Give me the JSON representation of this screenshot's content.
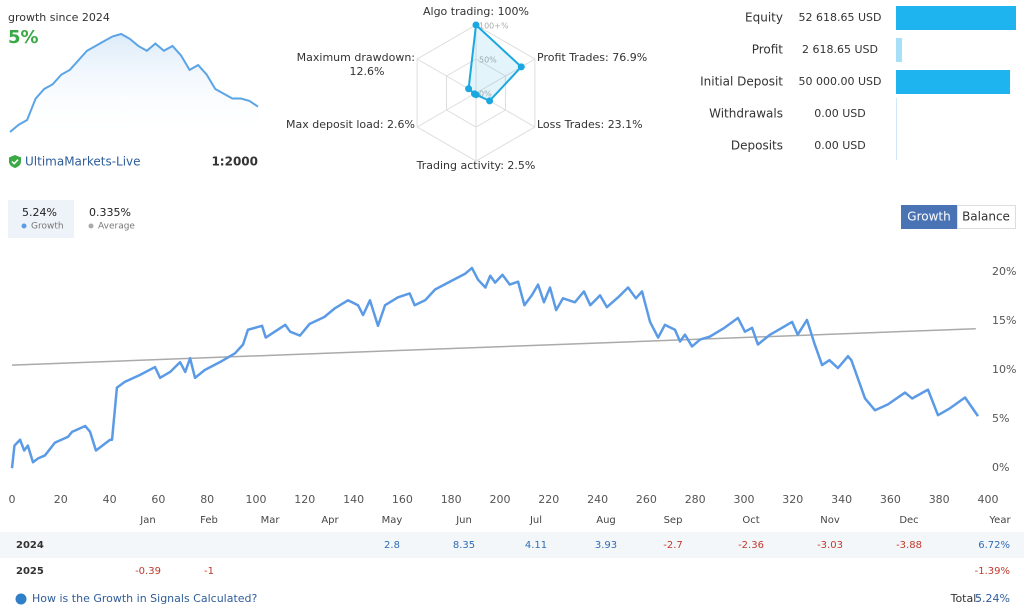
{
  "header": {
    "growth_label": "growth since 2024",
    "growth_value": "5%",
    "broker": "UltimaMarkets-Live",
    "leverage": "1:2000"
  },
  "tabs": [
    "Growth",
    "Balance"
  ],
  "chart_data": [
    {
      "type": "area",
      "color": "#5ba4e6",
      "values": [
        0,
        1.5,
        2.5,
        7,
        9,
        10,
        12,
        13,
        15,
        17,
        18,
        19,
        20,
        20.5,
        19.5,
        18,
        17,
        18.5,
        17,
        18,
        16,
        13,
        14,
        12,
        9,
        8,
        7,
        7,
        6.5,
        5.3
      ]
    },
    {
      "type": "radar",
      "color": "#1ba8e0",
      "categories": [
        "Algo trading:",
        "Profit Trades:",
        "Loss Trades:",
        "Trading activity:",
        "Max deposit load:",
        "Maximum drawdown:"
      ],
      "values": [
        100,
        76.9,
        23.1,
        2.5,
        2.6,
        12.6
      ],
      "value_labels": [
        "100%",
        "76.9%",
        "23.1%",
        "2.5%",
        "2.6%",
        "12.6%"
      ],
      "rlim": [
        0,
        100
      ],
      "rticks": [
        {
          "value": 100,
          "label": "100+%"
        },
        {
          "value": 50,
          "label": "50%"
        },
        {
          "value": 0,
          "label": "0%"
        }
      ]
    },
    {
      "type": "barh",
      "categories": [
        "Equity",
        "Profit",
        "Initial Deposit",
        "Withdrawals",
        "Deposits"
      ],
      "values": [
        52618.65,
        2618.65,
        50000,
        0,
        0
      ],
      "value_labels": [
        "52 618.65 USD",
        "2 618.65 USD",
        "50 000.00 USD",
        "0.00 USD",
        "0.00 USD"
      ],
      "colors": [
        "#1eb4f0",
        "#a6dff7",
        "#1eb4f0",
        "#1eb4f0",
        "#1eb4f0"
      ]
    },
    {
      "type": "line",
      "xlim": [
        0,
        400
      ],
      "xticks": [
        0,
        20,
        40,
        60,
        80,
        100,
        120,
        140,
        160,
        180,
        200,
        220,
        240,
        260,
        280,
        300,
        320,
        340,
        360,
        380,
        400
      ],
      "ylim": [
        -1,
        21
      ],
      "yticks": [
        {
          "value": 0,
          "label": "0%"
        },
        {
          "value": 5,
          "label": "5%"
        },
        {
          "value": 10,
          "label": "10%"
        },
        {
          "value": 15,
          "label": "15%"
        },
        {
          "value": 20,
          "label": "20%"
        }
      ],
      "grid": false,
      "series": [
        {
          "name": "Growth",
          "summary": "5.24%",
          "color": "#5b9be6",
          "x": [
            0,
            1,
            3.3,
            5,
            6.5,
            8.6,
            10.7,
            13.5,
            17.6,
            23,
            24.6,
            30,
            32,
            34.4,
            40.2,
            41,
            43,
            46.3,
            52.5,
            58.6,
            60.7,
            64.8,
            68.9,
            71,
            73,
            75,
            79,
            85.2,
            91.4,
            94.7,
            96.7,
            102.5,
            104,
            112,
            114,
            118,
            122,
            128,
            132.4,
            137.7,
            141.8,
            143.9,
            146.7,
            150,
            152.9,
            158.2,
            163,
            165,
            169.3,
            173.4,
            179.5,
            185.7,
            188.5,
            191,
            194,
            196,
            198,
            201,
            204,
            207.4,
            210,
            213,
            215.6,
            218,
            220.5,
            223,
            225.8,
            230.7,
            234.4,
            237,
            241,
            243.8,
            248.4,
            252.5,
            255.7,
            258.2,
            261.5,
            264.8,
            267.6,
            271.7,
            273.8,
            275.8,
            278.7,
            282,
            286,
            292,
            297.5,
            300.4,
            303.3,
            305.7,
            310.7,
            315.6,
            319.7,
            322,
            325.8,
            329,
            332,
            335,
            338.5,
            342.6,
            344,
            349.6,
            353.7,
            359,
            366,
            368.9,
            375.4,
            379.5,
            384.4,
            390.6,
            395.9
          ],
          "values": [
            0,
            2.3,
            2.9,
            1.8,
            2.3,
            0.6,
            1.0,
            1.3,
            2.6,
            3.2,
            3.7,
            4.3,
            3.7,
            1.8,
            2.9,
            2.9,
            8.2,
            8.8,
            9.5,
            10.3,
            9.2,
            9.8,
            10.8,
            9.8,
            11.2,
            9.2,
            10,
            10.8,
            11.7,
            12.6,
            14.1,
            14.5,
            13.3,
            14.6,
            13.9,
            13.5,
            14.7,
            15.4,
            16.3,
            17.1,
            16.6,
            15.6,
            17.1,
            14.5,
            16.6,
            17.4,
            17.8,
            16.6,
            17.1,
            18.2,
            19.0,
            19.8,
            20.4,
            19.2,
            18.4,
            19.6,
            18.9,
            19.7,
            18.7,
            19.0,
            16.6,
            17.6,
            18.7,
            16.9,
            18.4,
            16.1,
            17.3,
            16.9,
            18.0,
            16.6,
            17.6,
            16.4,
            17.4,
            18.4,
            17.3,
            18.0,
            14.9,
            13.3,
            14.6,
            14.1,
            12.9,
            13.6,
            12.4,
            13.1,
            13.4,
            14.3,
            15.3,
            13.9,
            14.3,
            12.6,
            13.6,
            14.3,
            14.9,
            13.6,
            15.1,
            12.6,
            10.5,
            11.0,
            10.2,
            11.4,
            11.0,
            7.1,
            5.9,
            6.5,
            7.7,
            7.1,
            8.0,
            5.4,
            6.1,
            7.2,
            5.3
          ]
        },
        {
          "name": "Average",
          "summary": "0.335%",
          "color": "#aaaaaa",
          "x": [
            0,
            395
          ],
          "values": [
            10.5,
            14.2
          ]
        }
      ]
    }
  ],
  "table": {
    "columns": [
      "Jan",
      "Feb",
      "Mar",
      "Apr",
      "May",
      "Jun",
      "Jul",
      "Aug",
      "Sep",
      "Oct",
      "Nov",
      "Dec",
      "Year"
    ],
    "rows": [
      {
        "year": "2024",
        "values": [
          null,
          null,
          null,
          null,
          2.8,
          8.35,
          4.11,
          3.93,
          -2.7,
          -2.36,
          -3.03,
          -3.88
        ],
        "total": "6.72%"
      },
      {
        "year": "2025",
        "values": [
          -0.39,
          -1,
          null,
          null,
          null,
          null,
          null,
          null,
          null,
          null,
          null,
          null
        ],
        "total": "-1.39%"
      }
    ]
  },
  "footer": {
    "link": "How is the Growth in Signals Calculated?",
    "total_label": "Total:",
    "total_value": "5.24%"
  }
}
